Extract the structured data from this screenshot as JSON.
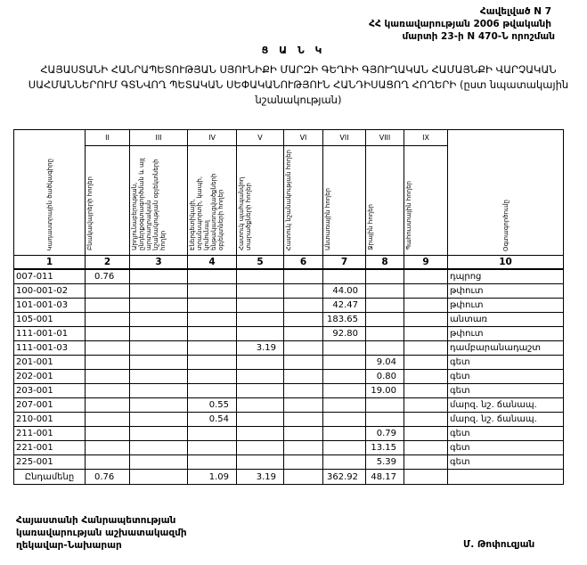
{
  "appendix": {
    "line1": "Հավելված N 7",
    "line2": "ՀՀ կառավարության 2006 թվականի",
    "line3": "մարտի 23-ի N 470-Ն որոշման"
  },
  "heading": "Ց Ա Ն Կ",
  "title": "ՀԱՅԱՍՏԱՆԻ ՀԱՆՐԱՊԵՏՈՒԹՅԱՆ ՍՅՈՒՆԻՔԻ ՄԱՐԶԻ ԳԵՂԻԻ ԳՅՈՒՂԱԿԱՆ ՀԱՄԱՅՆՔԻ ՎԱՐՉԱԿԱՆ ՍԱՀՄԱՆՆԵՐՈՒՄ ԳՏՆՎՈՂ ՊԵՏԱԿԱՆ ՍԵՓԱԿԱՆՈՒԹՅՈՒՆ ՀԱՆԴԻՍԱՑՈՂ ՀՈՂԵՐԻ (ըստ նպատակային նշանակության)",
  "table": {
    "roman": [
      "II",
      "III",
      "IV",
      "V",
      "VI",
      "VII",
      "VIII",
      "IX"
    ],
    "headers": [
      "Կադաստրային ծածկագիրը",
      "Բնակավայրերի հողեր",
      "Արդյունաբերության, ընդերքօգտագործման և այլ արտադրական նշանակության օբյեկտների հողեր",
      "Էներգետիկայի, տրանսպորտի, կապի, կոմունալ ենթակառուցվածքների օբյեկտների հողեր",
      "Հատուկ պահպանվող տարածքների հողեր",
      "Հատուկ նշանակության հողեր",
      "Անտառային հողեր",
      "Ջրային հողեր",
      "Պահուստային հողեր",
      "Օգտագործումը"
    ],
    "numbers": [
      "1",
      "2",
      "3",
      "4",
      "5",
      "6",
      "7",
      "8",
      "9",
      "10"
    ],
    "rows": [
      [
        "007-011",
        "0.76",
        "",
        "",
        "",
        "",
        "",
        "",
        "",
        "դպրոց"
      ],
      [
        "100-001-02",
        "",
        "",
        "",
        "",
        "",
        "44.00",
        "",
        "",
        "թփուտ"
      ],
      [
        "101-001-03",
        "",
        "",
        "",
        "",
        "",
        "42.47",
        "",
        "",
        "թփուտ"
      ],
      [
        "105-001",
        "",
        "",
        "",
        "",
        "",
        "183.65",
        "",
        "",
        "անտառ"
      ],
      [
        "111-001-01",
        "",
        "",
        "",
        "",
        "",
        "92.80",
        "",
        "",
        "թփուտ"
      ],
      [
        "111-001-03",
        "",
        "",
        "",
        "3.19",
        "",
        "",
        "",
        "",
        "դամբարանադաշտ"
      ],
      [
        "201-001",
        "",
        "",
        "",
        "",
        "",
        "",
        "9.04",
        "",
        "գետ"
      ],
      [
        "202-001",
        "",
        "",
        "",
        "",
        "",
        "",
        "0.80",
        "",
        "գետ"
      ],
      [
        "203-001",
        "",
        "",
        "",
        "",
        "",
        "",
        "19.00",
        "",
        "գետ"
      ],
      [
        "207-001",
        "",
        "",
        "0.55",
        "",
        "",
        "",
        "",
        "",
        "մարզ. նշ. ճանապ."
      ],
      [
        "210-001",
        "",
        "",
        "0.54",
        "",
        "",
        "",
        "",
        "",
        "մարզ. նշ. ճանապ."
      ],
      [
        "211-001",
        "",
        "",
        "",
        "",
        "",
        "",
        "0.79",
        "",
        "գետ"
      ],
      [
        "221-001",
        "",
        "",
        "",
        "",
        "",
        "",
        "13.15",
        "",
        "գետ"
      ],
      [
        "225-001",
        "",
        "",
        "",
        "",
        "",
        "",
        "5.39",
        "",
        "գետ"
      ]
    ],
    "total": [
      "Ընդամենը",
      "0.76",
      "",
      "1.09",
      "3.19",
      "",
      "362.92",
      "48.17",
      "",
      ""
    ]
  },
  "footer": {
    "line1": "Հայաստանի Հանրապետության",
    "line2": "կառավարության աշխատակազմի",
    "line3": "ղեկավար-Նախարար",
    "signatory": "Մ. Թոփուզյան"
  }
}
